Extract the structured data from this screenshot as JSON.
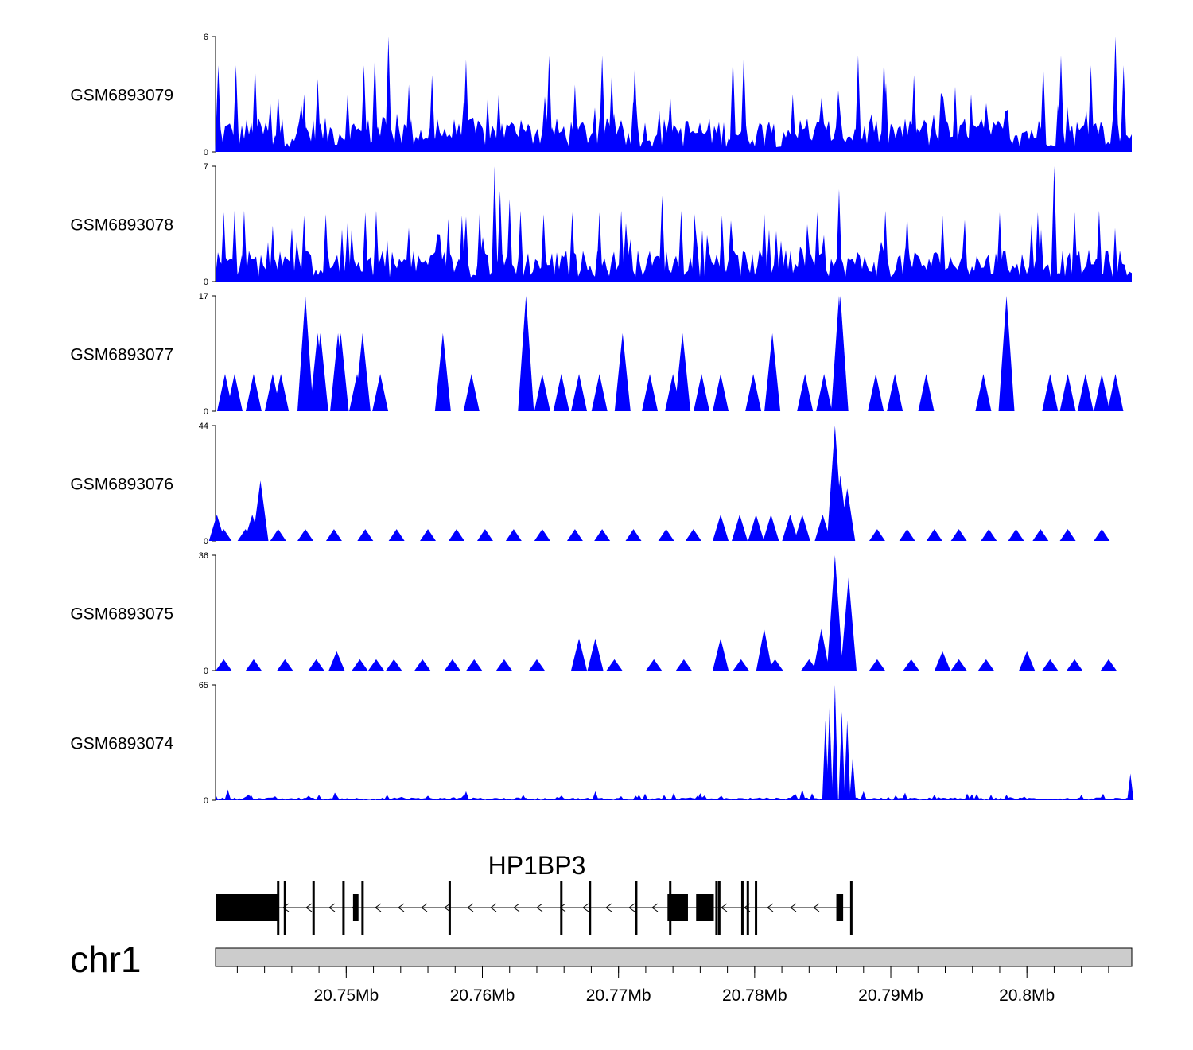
{
  "colors": {
    "track_fill": "#0000ff",
    "gene_fill": "#000000",
    "ideogram_fill": "#cccccc"
  },
  "chart_data": {
    "type": "area",
    "title": "",
    "xlabel": "",
    "chromosome": "chr1",
    "x_range_mb": [
      20.7404,
      20.8077
    ],
    "x_ticks_mb": [
      20.75,
      20.76,
      20.77,
      20.78,
      20.79,
      20.8
    ],
    "x_tick_labels": [
      "20.75Mb",
      "20.76Mb",
      "20.77Mb",
      "20.78Mb",
      "20.79Mb",
      "20.8Mb"
    ],
    "tracks": [
      {
        "name": "GSM6893079",
        "ymax": 6,
        "ymin": 0,
        "baseline": 1.2,
        "noise": 1.0,
        "peaks": [
          [
            20.7406,
            4.5
          ],
          [
            20.7419,
            4.5
          ],
          [
            20.7433,
            4.5
          ],
          [
            20.745,
            3.0
          ],
          [
            20.7469,
            3.0
          ],
          [
            20.7479,
            3.8
          ],
          [
            20.7501,
            3.0
          ],
          [
            20.7513,
            4.5
          ],
          [
            20.7521,
            5.0
          ],
          [
            20.7531,
            6.0
          ],
          [
            20.7546,
            3.5
          ],
          [
            20.7563,
            4.0
          ],
          [
            20.7588,
            4.8
          ],
          [
            20.7612,
            3.0
          ],
          [
            20.7649,
            5.0
          ],
          [
            20.7668,
            3.5
          ],
          [
            20.7688,
            5.0
          ],
          [
            20.7695,
            4.0
          ],
          [
            20.7712,
            4.5
          ],
          [
            20.7738,
            3.0
          ],
          [
            20.7784,
            5.0
          ],
          [
            20.7792,
            5.0
          ],
          [
            20.7828,
            3.0
          ],
          [
            20.7876,
            5.0
          ],
          [
            20.7895,
            5.0
          ],
          [
            20.7917,
            4.0
          ],
          [
            20.7959,
            3.0
          ],
          [
            20.8012,
            4.5
          ],
          [
            20.8025,
            5.0
          ],
          [
            20.8047,
            4.5
          ],
          [
            20.8065,
            6.0
          ],
          [
            20.8071,
            4.5
          ]
        ]
      },
      {
        "name": "GSM6893078",
        "ymax": 7,
        "ymin": 0,
        "baseline": 1.3,
        "noise": 1.2,
        "peaks": [
          [
            20.741,
            4.2
          ],
          [
            20.7418,
            4.3
          ],
          [
            20.7425,
            4.3
          ],
          [
            20.7446,
            3.4
          ],
          [
            20.7469,
            4.0
          ],
          [
            20.7485,
            4.1
          ],
          [
            20.7501,
            3.6
          ],
          [
            20.7514,
            4.2
          ],
          [
            20.7522,
            4.3
          ],
          [
            20.7575,
            3.8
          ],
          [
            20.7585,
            4.0
          ],
          [
            20.7598,
            4.2
          ],
          [
            20.7609,
            7.0
          ],
          [
            20.7613,
            5.5
          ],
          [
            20.762,
            5.0
          ],
          [
            20.7628,
            4.3
          ],
          [
            20.7645,
            4.1
          ],
          [
            20.7666,
            4.2
          ],
          [
            20.7686,
            4.2
          ],
          [
            20.7702,
            4.3
          ],
          [
            20.7732,
            5.2
          ],
          [
            20.7746,
            4.3
          ],
          [
            20.7756,
            4.1
          ],
          [
            20.7776,
            4.0
          ],
          [
            20.7807,
            4.3
          ],
          [
            20.7846,
            4.2
          ],
          [
            20.7862,
            5.6
          ],
          [
            20.7896,
            4.3
          ],
          [
            20.7912,
            4.1
          ],
          [
            20.7938,
            4.0
          ],
          [
            20.798,
            4.2
          ],
          [
            20.8008,
            4.2
          ],
          [
            20.802,
            7.0
          ],
          [
            20.8035,
            4.2
          ],
          [
            20.8053,
            4.3
          ]
        ]
      },
      {
        "name": "GSM6893077",
        "ymax": 17,
        "ymin": 0,
        "baseline": 0,
        "noise": 0,
        "peaks": [
          [
            20.7411,
            5.5
          ],
          [
            20.7418,
            5.5
          ],
          [
            20.7432,
            5.5
          ],
          [
            20.7446,
            5.5
          ],
          [
            20.7452,
            5.5
          ],
          [
            20.747,
            17.0
          ],
          [
            20.7479,
            11.5
          ],
          [
            20.7481,
            11.5
          ],
          [
            20.7494,
            11.5
          ],
          [
            20.7496,
            11.5
          ],
          [
            20.7508,
            5.5
          ],
          [
            20.7512,
            11.5
          ],
          [
            20.7525,
            5.5
          ],
          [
            20.7571,
            11.5
          ],
          [
            20.7592,
            5.5
          ],
          [
            20.7632,
            17.0
          ],
          [
            20.7644,
            5.5
          ],
          [
            20.7658,
            5.5
          ],
          [
            20.7671,
            5.5
          ],
          [
            20.7686,
            5.5
          ],
          [
            20.7703,
            11.5
          ],
          [
            20.7723,
            5.5
          ],
          [
            20.774,
            5.5
          ],
          [
            20.7747,
            11.5
          ],
          [
            20.7761,
            5.5
          ],
          [
            20.7775,
            5.5
          ],
          [
            20.7799,
            5.5
          ],
          [
            20.7813,
            11.5
          ],
          [
            20.7837,
            5.5
          ],
          [
            20.7851,
            5.5
          ],
          [
            20.7862,
            17.0
          ],
          [
            20.7863,
            17.0
          ],
          [
            20.7889,
            5.5
          ],
          [
            20.7903,
            5.5
          ],
          [
            20.7926,
            5.5
          ],
          [
            20.7968,
            5.5
          ],
          [
            20.7985,
            17.0
          ],
          [
            20.8017,
            5.5
          ],
          [
            20.803,
            5.5
          ],
          [
            20.8043,
            5.5
          ],
          [
            20.8055,
            5.5
          ],
          [
            20.8065,
            5.5
          ]
        ]
      },
      {
        "name": "GSM6893076",
        "ymax": 44,
        "ymin": 0,
        "baseline": 0,
        "noise": 0,
        "peaks": [
          [
            20.7405,
            10
          ],
          [
            20.741,
            4.5
          ],
          [
            20.7426,
            4.5
          ],
          [
            20.7431,
            10
          ],
          [
            20.7437,
            23
          ],
          [
            20.745,
            4.5
          ],
          [
            20.747,
            4.5
          ],
          [
            20.7491,
            4.5
          ],
          [
            20.7514,
            4.5
          ],
          [
            20.7537,
            4.5
          ],
          [
            20.756,
            4.5
          ],
          [
            20.7581,
            4.5
          ],
          [
            20.7602,
            4.5
          ],
          [
            20.7623,
            4.5
          ],
          [
            20.7644,
            4.5
          ],
          [
            20.7668,
            4.5
          ],
          [
            20.7688,
            4.5
          ],
          [
            20.7711,
            4.5
          ],
          [
            20.7735,
            4.5
          ],
          [
            20.7755,
            4.5
          ],
          [
            20.7775,
            10
          ],
          [
            20.7789,
            10
          ],
          [
            20.7801,
            10
          ],
          [
            20.7812,
            10
          ],
          [
            20.7826,
            10
          ],
          [
            20.7835,
            10
          ],
          [
            20.785,
            10
          ],
          [
            20.7859,
            44
          ],
          [
            20.7863,
            25
          ],
          [
            20.7868,
            20
          ],
          [
            20.789,
            4.5
          ],
          [
            20.7912,
            4.5
          ],
          [
            20.7932,
            4.5
          ],
          [
            20.795,
            4.5
          ],
          [
            20.7972,
            4.5
          ],
          [
            20.7992,
            4.5
          ],
          [
            20.801,
            4.5
          ],
          [
            20.803,
            4.5
          ],
          [
            20.8055,
            4.5
          ]
        ]
      },
      {
        "name": "GSM6893075",
        "ymax": 36,
        "ymin": 0,
        "baseline": 0,
        "noise": 0,
        "peaks": [
          [
            20.741,
            3.5
          ],
          [
            20.7432,
            3.5
          ],
          [
            20.7455,
            3.5
          ],
          [
            20.7478,
            3.5
          ],
          [
            20.7493,
            6
          ],
          [
            20.751,
            3.5
          ],
          [
            20.7522,
            3.5
          ],
          [
            20.7535,
            3.5
          ],
          [
            20.7556,
            3.5
          ],
          [
            20.7578,
            3.5
          ],
          [
            20.7594,
            3.5
          ],
          [
            20.7616,
            3.5
          ],
          [
            20.764,
            3.5
          ],
          [
            20.7671,
            10
          ],
          [
            20.7683,
            10
          ],
          [
            20.7697,
            3.5
          ],
          [
            20.7726,
            3.5
          ],
          [
            20.7748,
            3.5
          ],
          [
            20.7775,
            10
          ],
          [
            20.779,
            3.5
          ],
          [
            20.7807,
            13
          ],
          [
            20.7815,
            3.5
          ],
          [
            20.784,
            3.5
          ],
          [
            20.7849,
            13
          ],
          [
            20.7859,
            36
          ],
          [
            20.7869,
            29
          ],
          [
            20.789,
            3.5
          ],
          [
            20.7915,
            3.5
          ],
          [
            20.7938,
            6
          ],
          [
            20.795,
            3.5
          ],
          [
            20.797,
            3.5
          ],
          [
            20.8,
            6
          ],
          [
            20.8017,
            3.5
          ],
          [
            20.8035,
            3.5
          ],
          [
            20.806,
            3.5
          ]
        ]
      },
      {
        "name": "GSM6893074",
        "ymax": 65,
        "ymin": 0,
        "baseline": 1.0,
        "noise": 1.5,
        "peaks": [
          [
            20.7413,
            6
          ],
          [
            20.743,
            3
          ],
          [
            20.748,
            3
          ],
          [
            20.753,
            3
          ],
          [
            20.7588,
            5
          ],
          [
            20.763,
            3
          ],
          [
            20.7683,
            5
          ],
          [
            20.7715,
            3
          ],
          [
            20.776,
            4
          ],
          [
            20.7835,
            6
          ],
          [
            20.7852,
            45
          ],
          [
            20.7855,
            52
          ],
          [
            20.7859,
            65
          ],
          [
            20.7864,
            50
          ],
          [
            20.7868,
            45
          ],
          [
            20.7872,
            24
          ],
          [
            20.788,
            5
          ],
          [
            20.7932,
            3
          ],
          [
            20.7985,
            3
          ],
          [
            20.804,
            3
          ],
          [
            20.8076,
            15
          ]
        ]
      }
    ],
    "gene": {
      "name": "HP1BP3",
      "strand": "-",
      "thick_exons": [
        [
          20.7404,
          20.745
        ],
        [
          20.7505,
          20.7509
        ],
        [
          20.7736,
          20.7751
        ],
        [
          20.7757,
          20.777
        ],
        [
          20.786,
          20.7865
        ]
      ],
      "thin_exons": [
        20.745,
        20.7455,
        20.7476,
        20.7498,
        20.7512,
        20.7576,
        20.7658,
        20.7679,
        20.7713,
        20.7738,
        20.7772,
        20.7774,
        20.7791,
        20.7795,
        20.7801,
        20.7871
      ]
    }
  }
}
